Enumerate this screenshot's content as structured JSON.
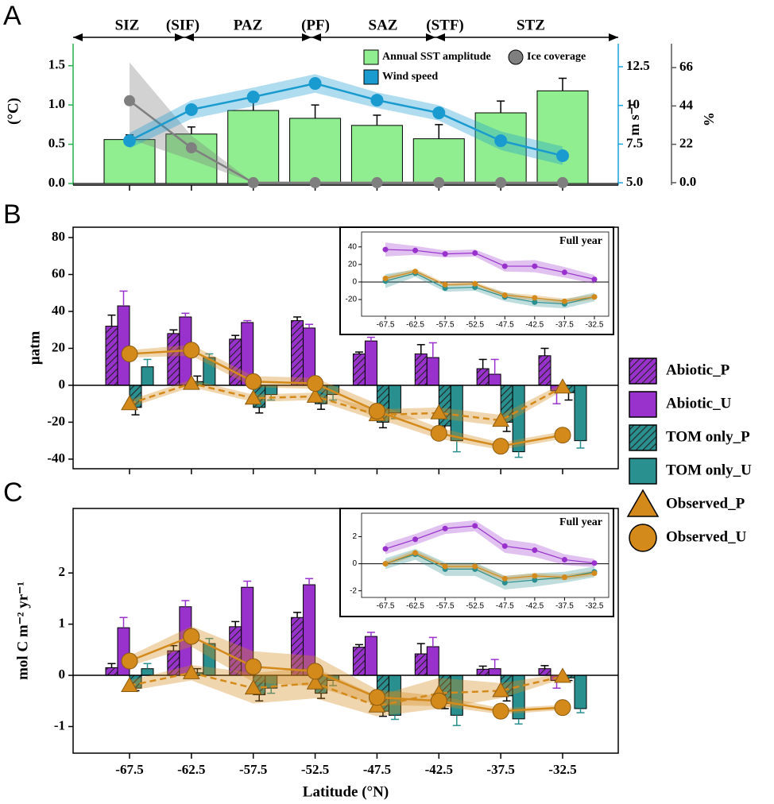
{
  "chart_data": [
    {
      "type": "combo",
      "panel": "A",
      "zones": [
        {
          "label": "SIZ",
          "color": "#c00000"
        },
        {
          "label": "(SIF)",
          "color": "#000000"
        },
        {
          "label": "PAZ",
          "color": "#c00000"
        },
        {
          "label": "(PF)",
          "color": "#000000"
        },
        {
          "label": "SAZ",
          "color": "#c00000"
        },
        {
          "label": "(STF)",
          "color": "#000000"
        },
        {
          "label": "STZ",
          "color": "#c00000"
        }
      ],
      "ylabel": "(°C)",
      "y2label": "m s⁻¹",
      "y3label": "%",
      "ylim": [
        -0.02,
        1.78
      ],
      "yticks": [
        {
          "value": 0,
          "label": "0.0"
        },
        0.5,
        {
          "value": 1,
          "label": "1.0"
        },
        1.5
      ],
      "y2lim": [
        4.85,
        13.99
      ],
      "y2ticks": [
        {
          "value": 5,
          "label": "5.0"
        },
        7.5,
        10,
        12.5
      ],
      "y3lim": [
        -1.4,
        79.7
      ],
      "y3ticks": [
        {
          "value": 0,
          "label": "0.0"
        },
        22,
        44,
        66
      ],
      "legend": "upper right",
      "series": [
        {
          "name": "Annual SST amplitude",
          "type": "bar",
          "color": "#90ee90",
          "values": [
            0.56,
            0.63,
            0.93,
            0.83,
            0.74,
            0.57,
            0.9,
            1.18
          ],
          "errors": [
            0.06,
            0.09,
            0.11,
            0.17,
            0.13,
            0.18,
            0.15,
            0.16
          ]
        },
        {
          "name": "Ice coverage",
          "type": "line",
          "axis": "y3",
          "marker": "circle",
          "color": "#7f7f7f",
          "values": [
            47,
            20,
            0,
            0,
            0,
            0,
            0,
            0
          ],
          "spread": [
            22,
            7,
            0,
            0,
            0,
            0,
            0,
            0
          ]
        },
        {
          "name": "Wind speed",
          "type": "line",
          "axis": "y2",
          "marker": "circle",
          "color": "#1a9bd0",
          "values": [
            7.72,
            9.73,
            10.55,
            11.42,
            10.34,
            9.52,
            7.72,
            6.75
          ],
          "spread": [
            0.5,
            0.6,
            0.6,
            0.6,
            0.5,
            0.5,
            0.6,
            0.6
          ]
        }
      ]
    },
    {
      "type": "combo",
      "panel": "B",
      "ylabel": "µatm",
      "ylim": [
        -45.2,
        85.6
      ],
      "yticks": [
        -40,
        -20,
        0,
        20,
        40,
        60,
        80
      ],
      "legend": "right",
      "series": [
        {
          "name": "Abiotic_P",
          "type": "bar",
          "hatch": true,
          "color": "#9932cc",
          "values": [
            32,
            28,
            25,
            35,
            17,
            17,
            9,
            16
          ],
          "errors": [
            6,
            2,
            2,
            2,
            1,
            5,
            5,
            4
          ]
        },
        {
          "name": "Abiotic_U",
          "type": "bar",
          "hatch": false,
          "color": "#9932cc",
          "values": [
            43,
            37,
            34,
            31,
            24,
            15,
            6,
            -3
          ],
          "errors": [
            8,
            2,
            1,
            2,
            2,
            8,
            8,
            7
          ]
        },
        {
          "name": "TOM only_P",
          "type": "bar",
          "hatch": true,
          "color": "#2a8f8f",
          "values": [
            -12,
            2,
            -12,
            -10,
            -20,
            -22,
            -20,
            -4
          ],
          "errors": [
            4,
            3,
            3,
            3,
            3,
            5,
            5,
            4
          ]
        },
        {
          "name": "TOM only_U",
          "type": "bar",
          "hatch": false,
          "color": "#2a8f8f",
          "values": [
            10,
            15,
            -5,
            -5,
            -15,
            -30,
            -36,
            -30
          ],
          "errors": [
            4,
            2,
            3,
            3,
            3,
            6,
            3,
            4
          ]
        },
        {
          "name": "Observed_P",
          "type": "line",
          "marker": "triangle",
          "dash": true,
          "color": "#d48a1a",
          "values": [
            -10,
            1,
            -7,
            -6,
            -16,
            -15,
            -19,
            -1
          ],
          "spread": [
            2,
            2,
            2,
            2,
            3,
            3,
            3,
            2
          ]
        },
        {
          "name": "Observed_U",
          "type": "line",
          "marker": "circle",
          "dash": false,
          "color": "#d48a1a",
          "values": [
            17,
            19,
            2,
            1,
            -14,
            -26,
            -33,
            -27
          ],
          "spread": [
            2,
            3,
            3,
            3,
            4,
            3,
            2,
            2
          ]
        }
      ],
      "inset": {
        "type": "line",
        "title": "Full year",
        "ylim": [
          -39,
          57
        ],
        "yticks": [
          -20,
          0,
          20,
          40
        ],
        "series": [
          {
            "color": "#9932cc",
            "values": [
              37,
              36,
              32,
              33,
              18,
              18,
              11,
              3
            ],
            "spread": [
              8,
              5,
              4,
              4,
              6,
              7,
              6,
              5
            ]
          },
          {
            "color": "#2a8f8f",
            "values": [
              1,
              10,
              -7,
              -6,
              -17,
              -23,
              -25,
              -17
            ],
            "spread": [
              8,
              4,
              4,
              4,
              5,
              5,
              5,
              5
            ]
          },
          {
            "color": "#d48a1a",
            "values": [
              4,
              12,
              -3,
              -2,
              -15,
              -18,
              -22,
              -17
            ],
            "spread": [
              3,
              3,
              2,
              2,
              3,
              3,
              3,
              3
            ]
          }
        ]
      }
    },
    {
      "type": "combo",
      "panel": "C",
      "ylabel": "mol C m⁻² yr⁻¹",
      "xlabel": "Latitude (°N)",
      "categories": [
        "-67.5",
        "-62.5",
        "-57.5",
        "-52.5",
        "-47.5",
        "-42.5",
        "-37.5",
        "-32.5"
      ],
      "ylim": [
        -1.52,
        3.26
      ],
      "yticks": [
        -1,
        0,
        1,
        2
      ],
      "series": [
        {
          "name": "Abiotic_P",
          "type": "bar",
          "hatch": true,
          "color": "#9932cc",
          "values": [
            0.15,
            0.48,
            0.95,
            1.13,
            0.55,
            0.42,
            0.12,
            0.13
          ],
          "errors": [
            0.08,
            0.1,
            0.1,
            0.1,
            0.05,
            0.2,
            0.06,
            0.06
          ]
        },
        {
          "name": "Abiotic_U",
          "type": "bar",
          "hatch": false,
          "color": "#9932cc",
          "values": [
            0.93,
            1.34,
            1.72,
            1.77,
            0.76,
            0.56,
            0.13,
            -0.1
          ],
          "errors": [
            0.2,
            0.12,
            0.12,
            0.12,
            0.08,
            0.18,
            0.18,
            0.15
          ]
        },
        {
          "name": "TOM only_P",
          "type": "bar",
          "hatch": true,
          "color": "#2a8f8f",
          "values": [
            -0.25,
            0.05,
            -0.38,
            -0.35,
            -0.7,
            -0.55,
            -0.4,
            -0.05
          ],
          "errors": [
            0.05,
            0.08,
            0.12,
            0.1,
            0.1,
            0.1,
            0.1,
            0.05
          ]
        },
        {
          "name": "TOM only_U",
          "type": "bar",
          "hatch": false,
          "color": "#2a8f8f",
          "values": [
            0.13,
            0.62,
            -0.25,
            -0.1,
            -0.78,
            -0.78,
            -0.85,
            -0.65
          ],
          "errors": [
            0.1,
            0.1,
            0.1,
            0.1,
            0.08,
            0.2,
            0.1,
            0.08
          ]
        },
        {
          "name": "Observed_P",
          "type": "line",
          "marker": "triangle",
          "dash": true,
          "color": "#d48a1a",
          "values": [
            -0.2,
            0.05,
            -0.25,
            -0.15,
            -0.6,
            -0.35,
            -0.3,
            -0.02
          ],
          "spread": [
            0.1,
            0.15,
            0.3,
            0.3,
            0.2,
            0.3,
            0.15,
            0.05
          ]
        },
        {
          "name": "Observed_U",
          "type": "line",
          "marker": "circle",
          "dash": false,
          "color": "#d48a1a",
          "values": [
            0.28,
            0.76,
            0.17,
            0.08,
            -0.43,
            -0.5,
            -0.7,
            -0.63
          ],
          "spread": [
            0.1,
            0.2,
            0.3,
            0.3,
            0.15,
            0.1,
            0.06,
            0.05
          ]
        }
      ],
      "inset": {
        "type": "line",
        "title": "Full year",
        "ylim": [
          -2.49,
          3.73
        ],
        "yticks": [
          -2,
          0,
          2
        ],
        "series": [
          {
            "color": "#9932cc",
            "values": [
              1.1,
              1.8,
              2.6,
              2.8,
              1.3,
              1.0,
              0.3,
              0.05
            ],
            "spread": [
              0.4,
              0.4,
              0.4,
              0.4,
              0.5,
              0.5,
              0.4,
              0.3
            ]
          },
          {
            "color": "#2a8f8f",
            "values": [
              0.0,
              0.7,
              -0.4,
              -0.4,
              -1.4,
              -1.2,
              -1.0,
              -0.6
            ],
            "spread": [
              0.4,
              0.4,
              0.5,
              0.5,
              0.5,
              0.5,
              0.4,
              0.4
            ]
          },
          {
            "color": "#d48a1a",
            "values": [
              0.0,
              0.8,
              -0.2,
              -0.2,
              -1.1,
              -0.9,
              -1.0,
              -0.7
            ],
            "spread": [
              0.2,
              0.2,
              0.2,
              0.2,
              0.2,
              0.2,
              0.2,
              0.2
            ]
          }
        ]
      }
    }
  ]
}
